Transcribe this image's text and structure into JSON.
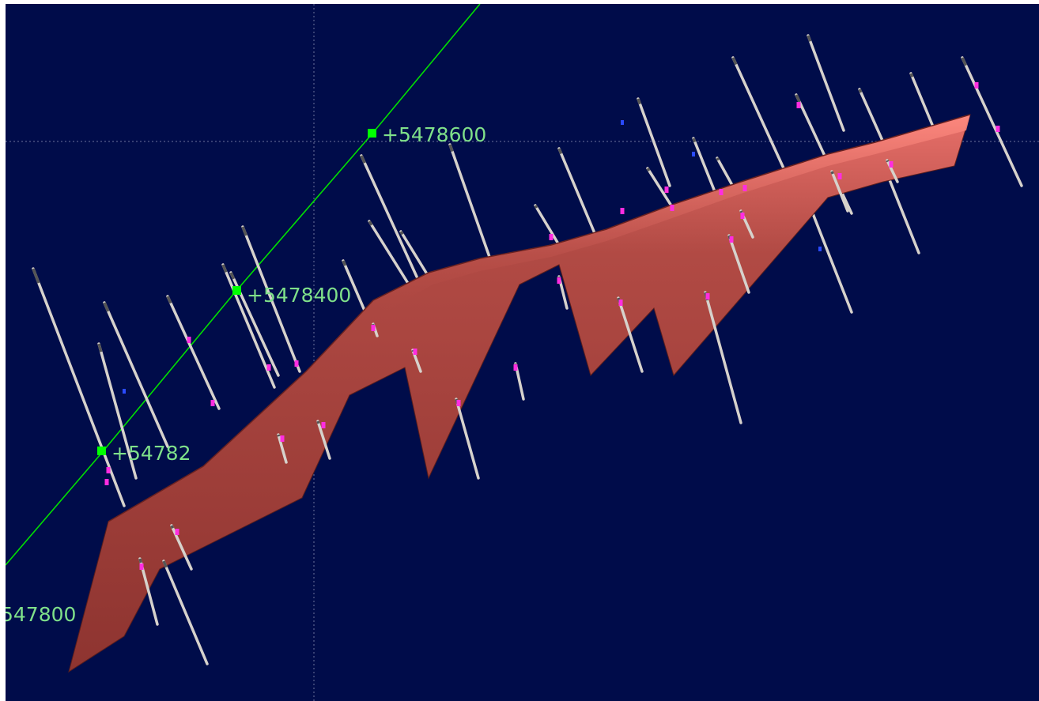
{
  "viewer": {
    "background_color": "#000c4a",
    "grid_color": "#9aa2c0",
    "section_line_color": "#00e000",
    "surface_color": "#a8403a",
    "drillhole_color": "#d6d2cc",
    "intercept_color": "#ff2de0"
  },
  "northing_labels": [
    {
      "id": "n-5478600",
      "text": "+5478600"
    },
    {
      "id": "n-5478400",
      "text": "+5478400"
    },
    {
      "id": "n-547820x",
      "text": "+54782"
    },
    {
      "id": "n-547800x",
      "text": "547800"
    }
  ]
}
